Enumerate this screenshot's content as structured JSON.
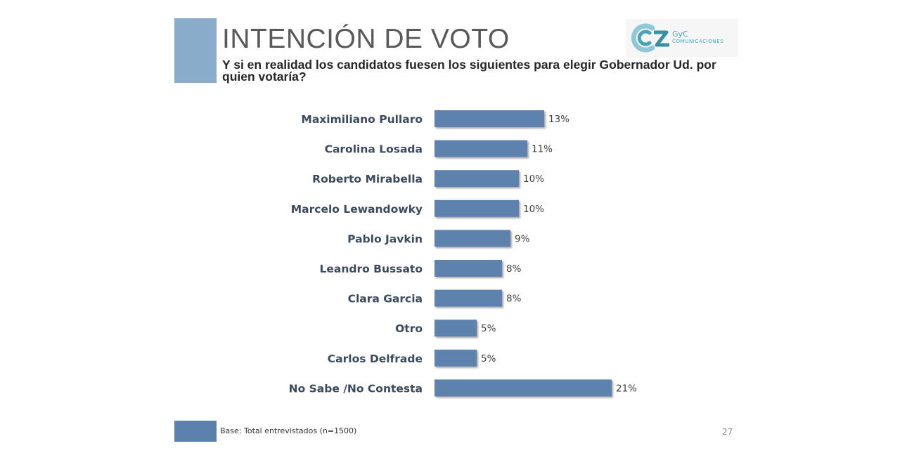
{
  "header": {
    "title": "INTENCIÓN DE VOTO",
    "subtitle": "Y si en realidad los candidatos fuesen los siguientes para elegir Gobernador Ud. por quien votaría?"
  },
  "logo": {
    "name": "GyC",
    "tagline": "COMUNICACIONES"
  },
  "chart_data": {
    "type": "bar",
    "orientation": "horizontal",
    "categories": [
      "Maximiliano Pullaro",
      "Carolina Losada",
      "Roberto Mirabella",
      "Marcelo Lewandowky",
      "Pablo Javkin",
      "Leandro Bussato",
      "Clara Garcia",
      "Otro",
      "Carlos Delfrade",
      "No Sabe /No Contesta"
    ],
    "values": [
      13,
      11,
      10,
      10,
      9,
      8,
      8,
      5,
      5,
      21
    ],
    "labels": [
      "13%",
      "11%",
      "10%",
      "10%",
      "9%",
      "8%",
      "8%",
      "5%",
      "5%",
      "21%"
    ],
    "unit": "%",
    "bar_color": "#5b82ad",
    "grid": false,
    "legend": "none"
  },
  "footer": {
    "note": "Base: Total entrevistados (n=1500)",
    "page_number": "27"
  }
}
